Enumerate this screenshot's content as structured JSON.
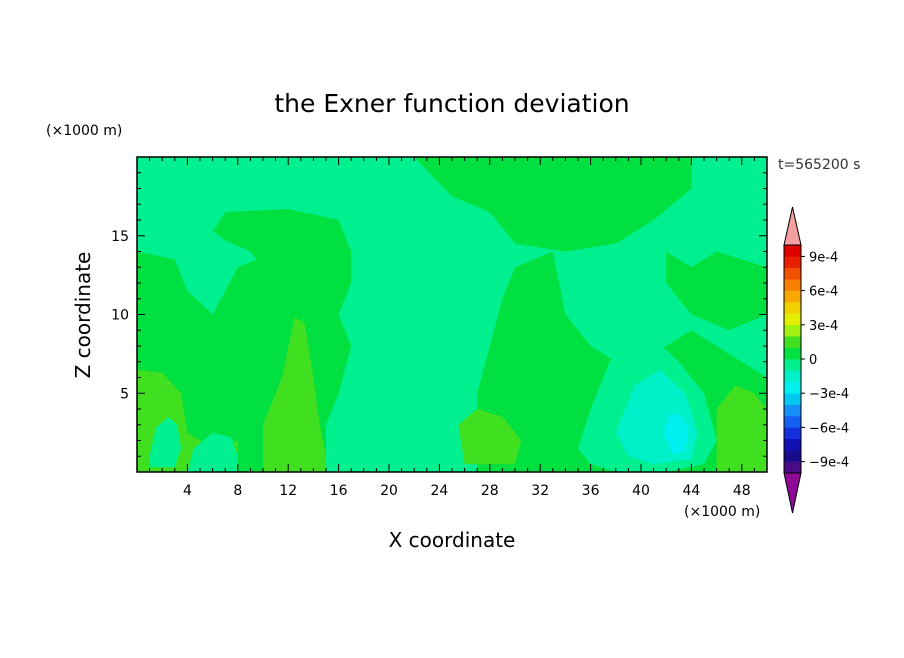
{
  "chart_data": {
    "type": "heatmap",
    "title": "the Exner function deviation",
    "xlabel": "X coordinate",
    "ylabel": "Z coordinate",
    "x_unit_label": "(×1000 m)",
    "y_unit_label": "(×1000 m)",
    "time_label": "t=565200 s",
    "xlim": [
      0,
      50
    ],
    "ylim": [
      0,
      20
    ],
    "x_ticks": [
      4,
      8,
      12,
      16,
      20,
      24,
      28,
      32,
      36,
      40,
      44,
      48
    ],
    "y_ticks": [
      5,
      10,
      15
    ],
    "colorbar": {
      "levels": [
        -0.0009,
        -0.0008,
        -0.0007,
        -0.0006,
        -0.0005,
        -0.0004,
        -0.0003,
        -0.0002,
        -0.0001,
        0,
        0.0001,
        0.0002,
        0.0003,
        0.0004,
        0.0005,
        0.0006,
        0.0007,
        0.0008,
        0.0009
      ],
      "colors": [
        "#4b0a86",
        "#1a0a8c",
        "#1010b4",
        "#1430dc",
        "#1460f0",
        "#1490f8",
        "#00c8f0",
        "#00f0f0",
        "#00f0c8",
        "#00f090",
        "#00e040",
        "#40e020",
        "#a0f010",
        "#e0f000",
        "#f0d000",
        "#f8a800",
        "#f88000",
        "#f05000",
        "#e82000",
        "#e00000"
      ],
      "under_color": "#8c0a96",
      "over_color": "#f4a0a0",
      "tick_labels": [
        "9e-4",
        "6e-4",
        "3e-4",
        "0",
        "−3e-4",
        "−6e-4",
        "−9e-4"
      ],
      "tick_values": [
        0.0009,
        0.0006,
        0.0003,
        0,
        -0.0003,
        -0.0006,
        -0.0009
      ]
    },
    "background_level": "0 to 1e-4",
    "regions": [
      {
        "name": "upper-left-positive",
        "level": 5e-05,
        "polygon": [
          [
            0,
            14
          ],
          [
            3,
            13.5
          ],
          [
            4,
            11.5
          ],
          [
            6,
            10
          ],
          [
            8,
            13
          ],
          [
            11,
            14
          ],
          [
            14,
            13
          ],
          [
            16,
            10
          ],
          [
            17,
            8
          ],
          [
            16,
            5
          ],
          [
            15,
            3
          ],
          [
            15,
            0
          ],
          [
            0,
            0
          ]
        ]
      },
      {
        "name": "upper-mid-positive",
        "level": 5e-05,
        "polygon": [
          [
            6,
            15.3
          ],
          [
            7,
            16.5
          ],
          [
            12,
            16.7
          ],
          [
            16,
            16
          ],
          [
            17,
            14
          ],
          [
            17,
            12
          ],
          [
            16,
            10
          ],
          [
            12,
            11
          ],
          [
            9,
            14
          ],
          [
            7,
            14.7
          ]
        ]
      },
      {
        "name": "top-mid-positive",
        "level": 5e-05,
        "polygon": [
          [
            22,
            20
          ],
          [
            44,
            20
          ],
          [
            44,
            18
          ],
          [
            41,
            16
          ],
          [
            38,
            14.5
          ],
          [
            34,
            14
          ],
          [
            30,
            14.5
          ],
          [
            28,
            16.5
          ],
          [
            25,
            17.5
          ]
        ]
      },
      {
        "name": "right-positive",
        "level": 5e-05,
        "polygon": [
          [
            33,
            14
          ],
          [
            34,
            10
          ],
          [
            36,
            8
          ],
          [
            38,
            7
          ],
          [
            42,
            8
          ],
          [
            44,
            9
          ],
          [
            46,
            8
          ],
          [
            50,
            6
          ],
          [
            50,
            0
          ],
          [
            27,
            0
          ],
          [
            27,
            5
          ],
          [
            28,
            8
          ],
          [
            29,
            11
          ],
          [
            30,
            13
          ]
        ]
      },
      {
        "name": "right-mid-positive",
        "level": 5e-05,
        "polygon": [
          [
            42,
            14
          ],
          [
            44,
            13
          ],
          [
            46,
            14
          ],
          [
            50,
            13
          ],
          [
            50,
            10
          ],
          [
            47,
            9
          ],
          [
            44,
            10
          ],
          [
            42,
            12
          ]
        ]
      },
      {
        "name": "lower-left-yellowgreen",
        "level": 0.00015,
        "polygon": [
          [
            0,
            6.5
          ],
          [
            2,
            6.3
          ],
          [
            3.5,
            5
          ],
          [
            4,
            2.5
          ],
          [
            6,
            1.5
          ],
          [
            8,
            2
          ],
          [
            8,
            0
          ],
          [
            0,
            0
          ]
        ]
      },
      {
        "name": "mid-left-yellowgreen",
        "level": 0.00015,
        "polygon": [
          [
            10,
            3
          ],
          [
            11.5,
            6
          ],
          [
            12.5,
            9.8
          ],
          [
            13.3,
            9.5
          ],
          [
            14,
            6
          ],
          [
            14.5,
            3
          ],
          [
            15,
            1
          ],
          [
            15,
            0
          ],
          [
            10,
            0
          ]
        ]
      },
      {
        "name": "mid-yellowgreen",
        "level": 0.00015,
        "polygon": [
          [
            25.5,
            3
          ],
          [
            27,
            4
          ],
          [
            29,
            3.5
          ],
          [
            30.5,
            2
          ],
          [
            30,
            0.5
          ],
          [
            26,
            0.5
          ]
        ]
      },
      {
        "name": "right-yellowgreen",
        "level": 0.00015,
        "polygon": [
          [
            46,
            4
          ],
          [
            47.5,
            5.5
          ],
          [
            49,
            5
          ],
          [
            50,
            4
          ],
          [
            50,
            0
          ],
          [
            46,
            0
          ]
        ]
      },
      {
        "name": "left-negative",
        "level": -5e-05,
        "polygon": [
          [
            1,
            1
          ],
          [
            1.5,
            2.8
          ],
          [
            2.5,
            3.5
          ],
          [
            3.2,
            3
          ],
          [
            3.5,
            1.5
          ],
          [
            3,
            0.3
          ],
          [
            1,
            0.3
          ]
        ]
      },
      {
        "name": "left-bottom-negative",
        "level": -5e-05,
        "polygon": [
          [
            4,
            0
          ],
          [
            4.5,
            1.5
          ],
          [
            6,
            2.5
          ],
          [
            7.5,
            2.2
          ],
          [
            8,
            1
          ],
          [
            8,
            0
          ]
        ]
      },
      {
        "name": "mid-negative",
        "level": -5e-05,
        "polygon": [
          [
            16,
            1.8
          ],
          [
            17,
            3.5
          ],
          [
            18.5,
            4.8
          ],
          [
            20,
            5
          ],
          [
            21.5,
            4.5
          ],
          [
            22,
            3
          ],
          [
            20,
            1.5
          ],
          [
            18,
            1
          ]
        ]
      },
      {
        "name": "right-negative-outer",
        "level": -5e-05,
        "polygon": [
          [
            35,
            1.5
          ],
          [
            36,
            4
          ],
          [
            37.5,
            7
          ],
          [
            39.5,
            8.5
          ],
          [
            41,
            8.5
          ],
          [
            43,
            7
          ],
          [
            45,
            5
          ],
          [
            46,
            2
          ],
          [
            45,
            0.5
          ],
          [
            42,
            0
          ],
          [
            38,
            0
          ],
          [
            36,
            0.5
          ]
        ]
      },
      {
        "name": "right-negative-inner",
        "level": -0.00015,
        "polygon": [
          [
            38,
            2.5
          ],
          [
            39.5,
            5.5
          ],
          [
            41.5,
            6.5
          ],
          [
            43.5,
            5
          ],
          [
            44.5,
            2.5
          ],
          [
            44,
            0.8
          ],
          [
            41,
            0.5
          ],
          [
            39,
            1
          ]
        ]
      },
      {
        "name": "right-negative-core",
        "level": -0.00025,
        "polygon": [
          [
            41.8,
            2.5
          ],
          [
            42.2,
            3.6
          ],
          [
            43,
            3.7
          ],
          [
            43.8,
            2.8
          ],
          [
            43.5,
            1.3
          ],
          [
            42.5,
            1.1
          ]
        ]
      }
    ]
  }
}
